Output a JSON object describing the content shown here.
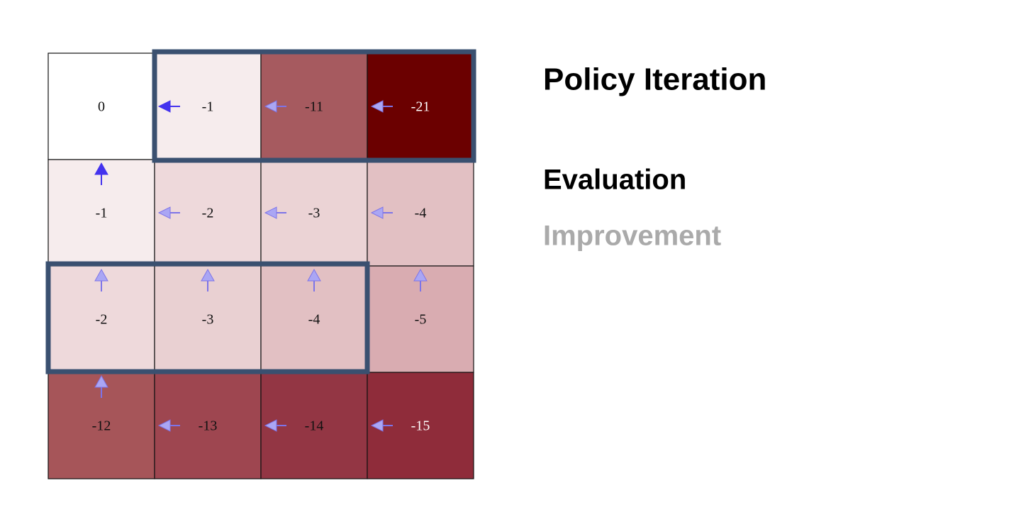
{
  "header": {
    "title": "Policy Iteration",
    "steps": [
      "Evaluation",
      "Improvement"
    ]
  },
  "grid": {
    "rows": [
      [
        {
          "value": 0,
          "color": "#ffffff",
          "text_color": "#111111",
          "arrow": null
        },
        {
          "value": -1,
          "color": "#f6eced",
          "text_color": "#111111",
          "arrow": "left-strong"
        },
        {
          "value": -11,
          "color": "#a65a5f",
          "text_color": "#111111",
          "arrow": "left"
        },
        {
          "value": -21,
          "color": "#6b0000",
          "text_color": "#ffffff",
          "arrow": "left"
        }
      ],
      [
        {
          "value": -1,
          "color": "#f6eced",
          "text_color": "#111111",
          "arrow": "up-strong"
        },
        {
          "value": -2,
          "color": "#eed9db",
          "text_color": "#111111",
          "arrow": "left"
        },
        {
          "value": -3,
          "color": "#ebd3d5",
          "text_color": "#111111",
          "arrow": "left"
        },
        {
          "value": -4,
          "color": "#e2c0c3",
          "text_color": "#111111",
          "arrow": "left"
        }
      ],
      [
        {
          "value": -2,
          "color": "#eed9db",
          "text_color": "#111111",
          "arrow": "up"
        },
        {
          "value": -3,
          "color": "#e9d0d2",
          "text_color": "#111111",
          "arrow": "up"
        },
        {
          "value": -4,
          "color": "#e2c0c3",
          "text_color": "#111111",
          "arrow": "up"
        },
        {
          "value": -5,
          "color": "#d9acb1",
          "text_color": "#111111",
          "arrow": "up"
        }
      ],
      [
        {
          "value": -12,
          "color": "#a65559",
          "text_color": "#111111",
          "arrow": "up"
        },
        {
          "value": -13,
          "color": "#9e4650",
          "text_color": "#111111",
          "arrow": "left"
        },
        {
          "value": -14,
          "color": "#933644",
          "text_color": "#111111",
          "arrow": "left"
        },
        {
          "value": -15,
          "color": "#8f2c3a",
          "text_color": "#ffffff",
          "arrow": "left"
        }
      ]
    ]
  }
}
